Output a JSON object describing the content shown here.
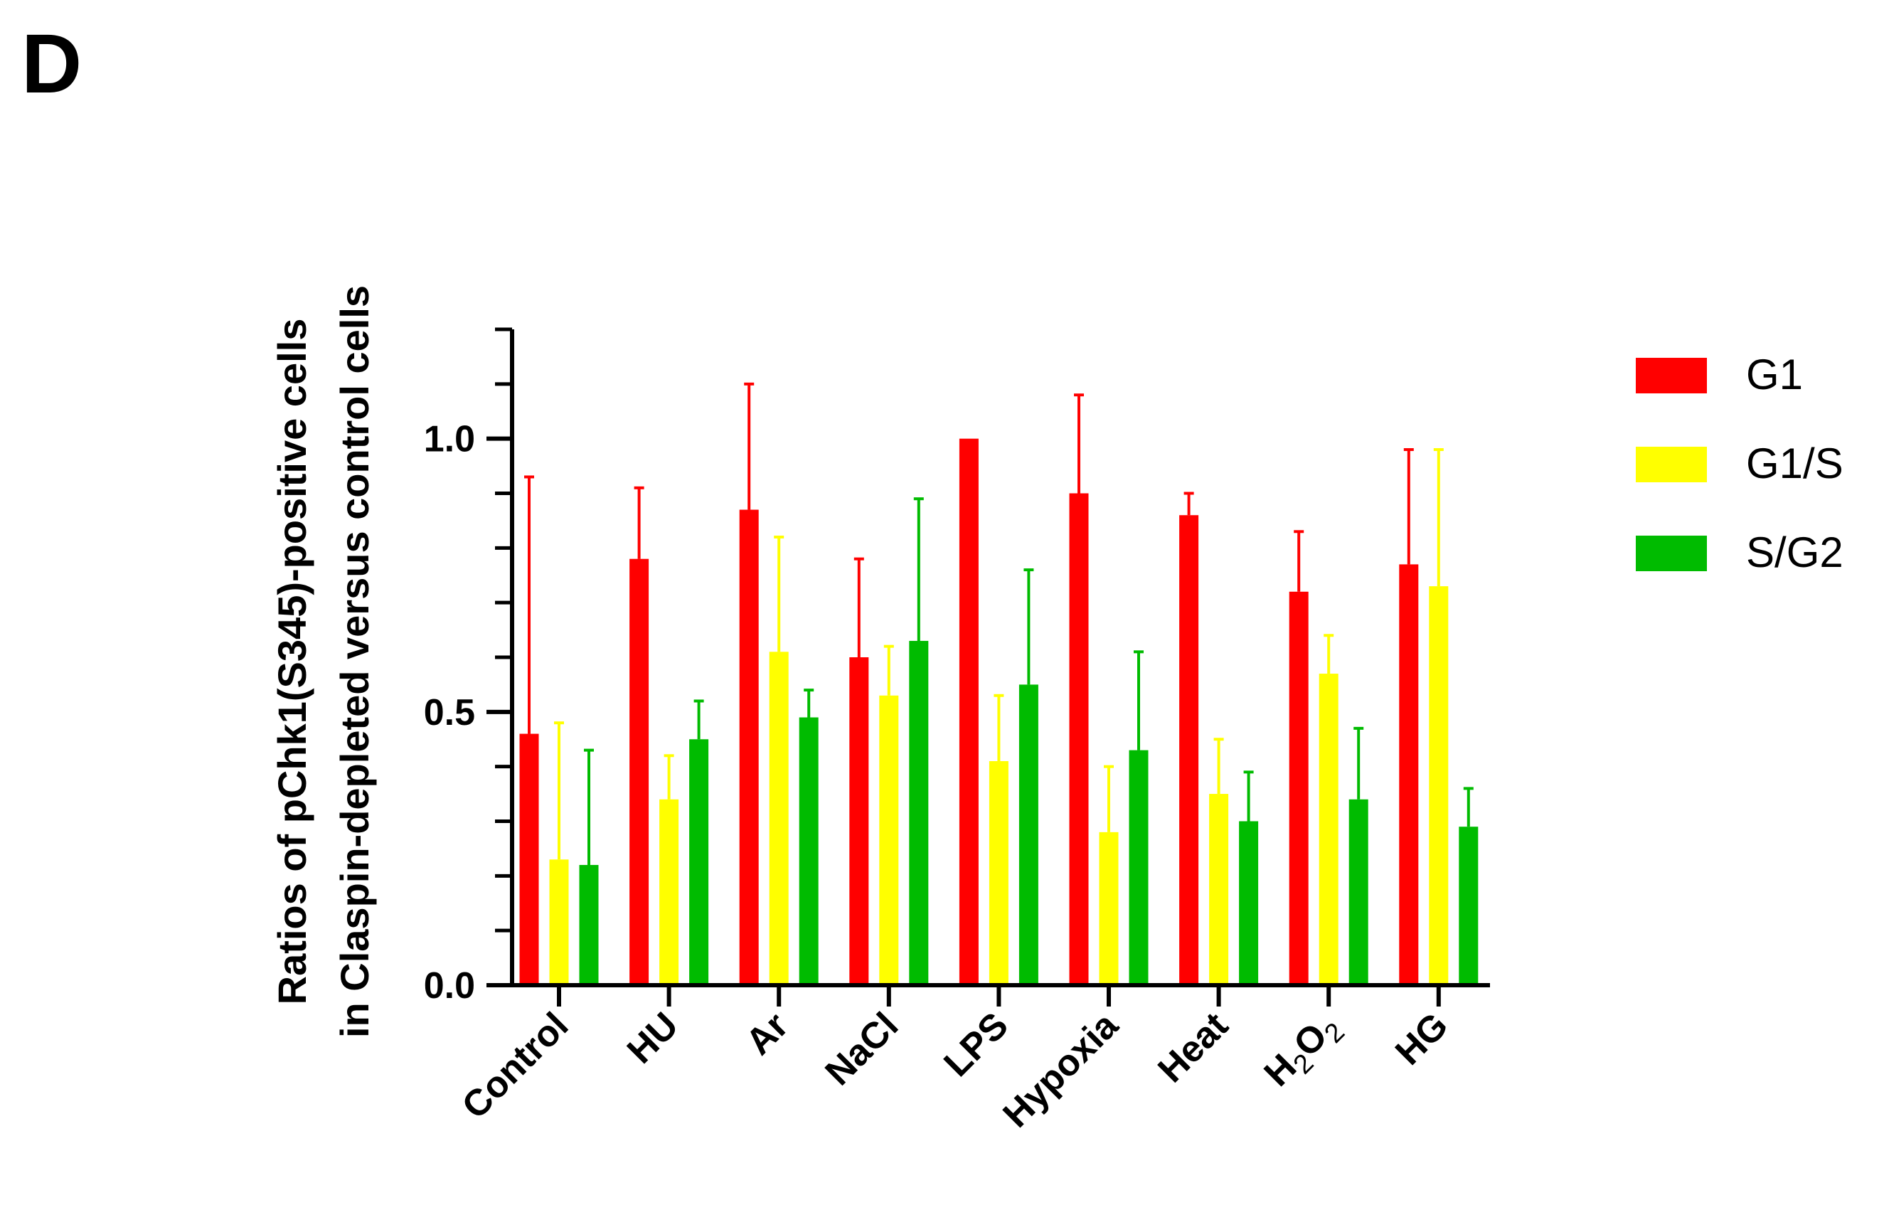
{
  "panel_label": "D",
  "colors": {
    "G1": "#ff0000",
    "G1/S": "#ffff00",
    "S/G2": "#00bb00"
  },
  "chart_data": {
    "type": "bar",
    "title": "",
    "xlabel": "",
    "ylabel_lines": [
      "Ratios of pChk1(S345)-positive cells",
      "in Claspin-depleted versus control cells"
    ],
    "ylim": [
      0,
      1.2
    ],
    "yticks": [
      0.0,
      0.5,
      1.0
    ],
    "ytick_labels": [
      "0.0",
      "0.5",
      "1.0"
    ],
    "y_minor_ticks": [
      0.1,
      0.2,
      0.3,
      0.4,
      0.6,
      0.7,
      0.8,
      0.9,
      1.1,
      1.2
    ],
    "categories": [
      "Control",
      "HU",
      "Ar",
      "NaCl",
      "LPS",
      "Hypoxia",
      "Heat",
      "H2O2",
      "HG"
    ],
    "category_parts": [
      [
        {
          "t": "Control"
        }
      ],
      [
        {
          "t": "HU"
        }
      ],
      [
        {
          "t": "Ar"
        }
      ],
      [
        {
          "t": "NaCl"
        }
      ],
      [
        {
          "t": "LPS"
        }
      ],
      [
        {
          "t": "Hypoxia"
        }
      ],
      [
        {
          "t": "Heat"
        }
      ],
      [
        {
          "t": "H"
        },
        {
          "t": "2",
          "sub": true
        },
        {
          "t": "O"
        },
        {
          "t": "2",
          "sub": true
        }
      ],
      [
        {
          "t": "HG"
        }
      ]
    ],
    "series": [
      {
        "name": "G1",
        "values": [
          0.46,
          0.78,
          0.87,
          0.6,
          1.0,
          0.9,
          0.86,
          0.72,
          0.77
        ],
        "errors": [
          0.47,
          0.13,
          0.23,
          0.18,
          0.0,
          0.18,
          0.04,
          0.11,
          0.21
        ]
      },
      {
        "name": "G1/S",
        "values": [
          0.23,
          0.34,
          0.61,
          0.53,
          0.41,
          0.28,
          0.35,
          0.57,
          0.73
        ],
        "errors": [
          0.25,
          0.08,
          0.21,
          0.09,
          0.12,
          0.12,
          0.1,
          0.07,
          0.25
        ]
      },
      {
        "name": "S/G2",
        "values": [
          0.22,
          0.45,
          0.49,
          0.63,
          0.55,
          0.43,
          0.3,
          0.34,
          0.29
        ],
        "errors": [
          0.21,
          0.07,
          0.05,
          0.26,
          0.21,
          0.18,
          0.09,
          0.13,
          0.07
        ]
      }
    ],
    "legend": [
      "G1",
      "G1/S",
      "S/G2"
    ],
    "legend_position": "right"
  }
}
